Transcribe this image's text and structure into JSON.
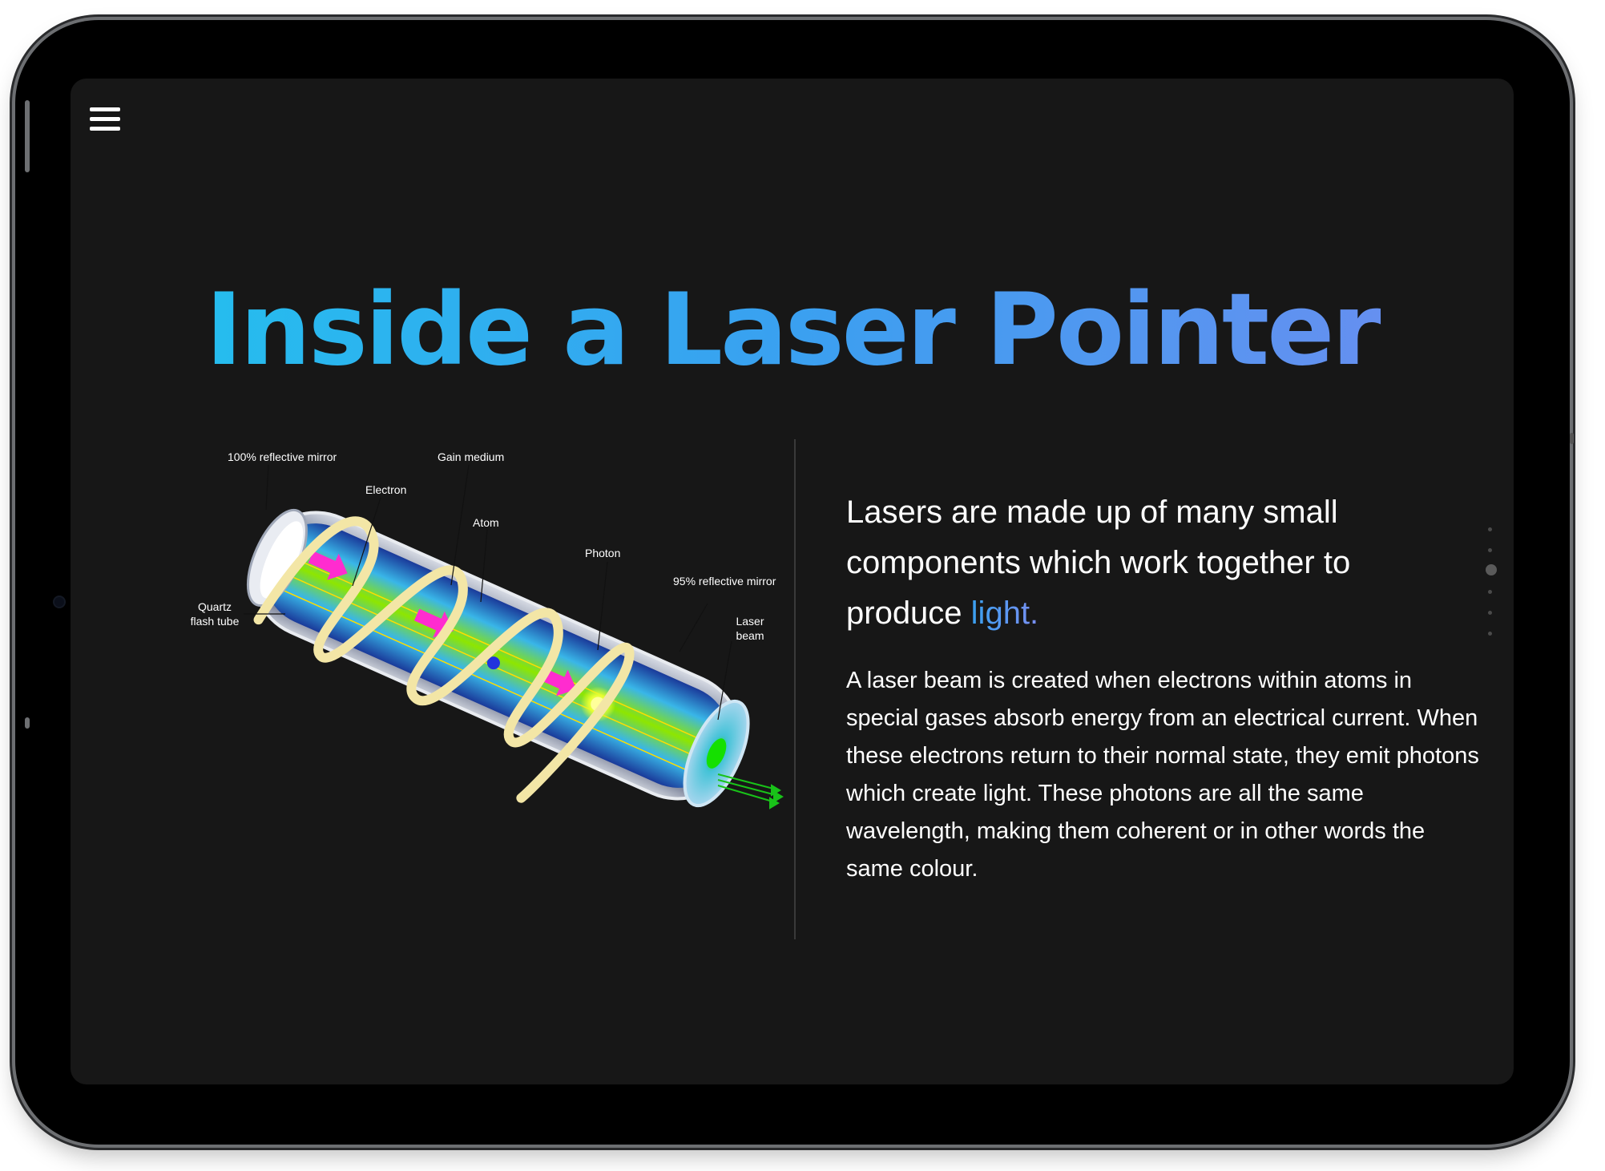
{
  "page": {
    "title": "Inside a Laser Pointer",
    "menu_icon": "hamburger-menu-icon"
  },
  "diagram": {
    "labels": {
      "mirror_100": "100% reflective mirror",
      "gain_medium": "Gain medium",
      "electron": "Electron",
      "atom": "Atom",
      "photon": "Photon",
      "mirror_95": "95% reflective mirror",
      "quartz_1": "Quartz",
      "quartz_2": "flash tube",
      "laser_1": "Laser",
      "laser_2": "beam"
    }
  },
  "content": {
    "lead_text": "Lasers are made up of many small components which work together to produce ",
    "lead_highlight": "light.",
    "body": "A laser beam is created when electrons within atoms in special gases absorb energy from an electrical current. When these electrons return to their normal state, they emit photons which create light. These photons are all the same wavelength, making them coherent or in other words the same colour."
  },
  "pager": {
    "count": 6,
    "active_index": 2
  },
  "colors": {
    "title_gradient_start": "#21c3ee",
    "title_gradient_end": "#6f8cf0",
    "screen_background": "#171717",
    "bezel": "#000000"
  }
}
